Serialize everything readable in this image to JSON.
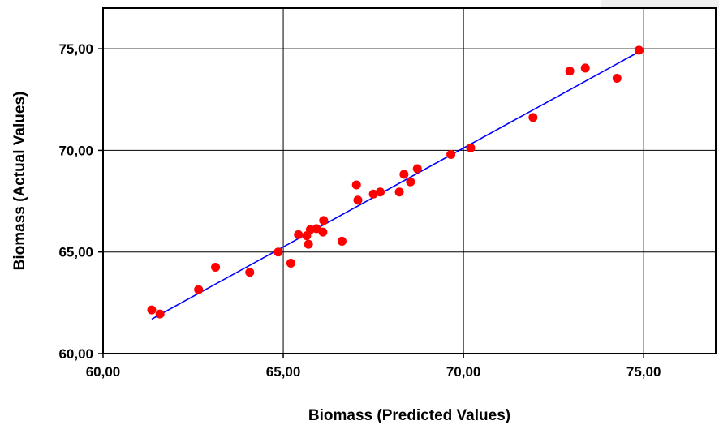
{
  "chart_data": {
    "type": "scatter",
    "title": "",
    "xlabel": "Biomass (Predicted Values)",
    "ylabel": "Biomass (Actual Values)",
    "xlim": [
      60,
      77
    ],
    "ylim": [
      60,
      77
    ],
    "x_ticks": [
      60,
      65,
      70,
      75
    ],
    "y_ticks": [
      60,
      65,
      70,
      75
    ],
    "x_tick_labels": [
      "60,00",
      "65,00",
      "70,00",
      "75,00"
    ],
    "y_tick_labels": [
      "60,00",
      "65,00",
      "70,00",
      "75,00"
    ],
    "grid": true,
    "legend": "none",
    "point_color": "#ff0000",
    "line_color": "#0000ff",
    "series": [
      {
        "points": [
          [
            61.35,
            62.15
          ],
          [
            61.58,
            61.95
          ],
          [
            62.65,
            63.15
          ],
          [
            63.12,
            64.25
          ],
          [
            64.07,
            64.0
          ],
          [
            64.86,
            65.0
          ],
          [
            65.21,
            64.45
          ],
          [
            65.42,
            65.85
          ],
          [
            65.65,
            65.8
          ],
          [
            65.7,
            65.38
          ],
          [
            65.75,
            66.1
          ],
          [
            65.92,
            66.15
          ],
          [
            66.1,
            65.98
          ],
          [
            66.12,
            66.55
          ],
          [
            66.63,
            65.53
          ],
          [
            67.03,
            68.3
          ],
          [
            67.07,
            67.55
          ],
          [
            67.5,
            67.85
          ],
          [
            67.69,
            67.95
          ],
          [
            68.22,
            67.95
          ],
          [
            68.35,
            68.82
          ],
          [
            68.53,
            68.45
          ],
          [
            68.72,
            69.1
          ],
          [
            69.65,
            69.8
          ],
          [
            70.2,
            70.12
          ],
          [
            71.93,
            71.62
          ],
          [
            72.95,
            73.9
          ],
          [
            73.38,
            74.05
          ],
          [
            74.26,
            73.55
          ],
          [
            74.87,
            74.93
          ]
        ]
      }
    ],
    "fit_line": {
      "x": [
        61.35,
        74.87
      ],
      "y": [
        61.7,
        74.85
      ]
    }
  }
}
